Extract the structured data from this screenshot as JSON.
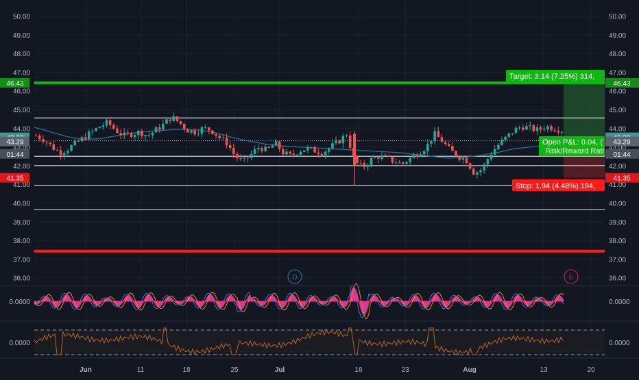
{
  "colors": {
    "background": "#131722",
    "grid": "#1e2230",
    "axis_text": "#b2b5be",
    "candle_up": "#26a69a",
    "candle_down": "#ef5350",
    "ma_line": "#2a6f97",
    "level_white": "#d1d4dc",
    "target_green": "#11b711",
    "stop_red": "#ff1a1a",
    "osc_pink": "#ff2e8a",
    "osc_orange": "#e08a2c",
    "osc_blue": "#2f7fd0",
    "osc2_line": "#b8652a"
  },
  "chart_data": {
    "type": "candlestick",
    "main": {
      "ylim": [
        35.8,
        50.5
      ],
      "y_ticks": [
        "50.00",
        "49.00",
        "48.00",
        "47.00",
        "46.00",
        "45.00",
        "44.00",
        "43.00",
        "42.00",
        "41.00",
        "40.00",
        "39.00",
        "38.00",
        "37.00",
        "36.00"
      ],
      "x_labels": [
        "Jun",
        "11",
        "18",
        "25",
        "Jul",
        "16",
        "23",
        "Aug",
        "13",
        "20"
      ],
      "horizontal_levels": [
        44.55,
        42.5,
        42.0,
        40.95,
        39.65
      ],
      "support_band": [
        37.35,
        37.5
      ],
      "target_level": 46.43,
      "stop_level": 41.35,
      "entry_level": 43.29,
      "dotted_level": 43.33,
      "price_badges": [
        {
          "label": "46.43",
          "kind": "target"
        },
        {
          "label": "43.33",
          "kind": "last"
        },
        {
          "label": "01:44",
          "kind": "countdown"
        },
        {
          "label": "43.29",
          "kind": "entry"
        },
        {
          "label": "41.35",
          "kind": "stop"
        }
      ],
      "position_labels": {
        "target": "Target: 3.14 (7.25%) 314,",
        "pnl_line1": "Open P&L: 0.04, (",
        "pnl_line2": "Risk/Reward Rati",
        "stop": "Stop: 1.94 (4.48%) 194,"
      },
      "event_markers": [
        "D",
        "E"
      ],
      "close_path": [
        43.6,
        43.4,
        43.0,
        42.7,
        42.9,
        43.2,
        43.5,
        43.8,
        44.1,
        44.3,
        43.9,
        43.6,
        43.7,
        43.8,
        43.6,
        43.9,
        44.2,
        44.6,
        44.3,
        43.9,
        43.8,
        44.0,
        43.9,
        43.5,
        43.2,
        42.5,
        42.2,
        42.6,
        43.0,
        42.8,
        43.2,
        42.7,
        42.5,
        42.8,
        42.9,
        42.8,
        42.7,
        43.0,
        43.3,
        43.7,
        42.2,
        41.9,
        42.3,
        42.5,
        42.4,
        42.2,
        42.1,
        42.4,
        42.7,
        43.0,
        43.7,
        43.3,
        42.8,
        42.5,
        42.3,
        41.6,
        41.8,
        42.6,
        43.1,
        43.5,
        43.9,
        44.1,
        44.0,
        43.9,
        44.1,
        44.0,
        43.9
      ],
      "ma_path": [
        44.05,
        43.8,
        43.55,
        43.4,
        43.45,
        43.6,
        43.75,
        43.85,
        43.9,
        43.95,
        43.9,
        43.75,
        43.5,
        43.3,
        43.15,
        43.05,
        43.0,
        42.95,
        42.9,
        42.85,
        42.8,
        42.75,
        42.7,
        42.6,
        42.5,
        42.4,
        42.45,
        42.55,
        42.7,
        42.9,
        43.0,
        43.1,
        43.3
      ]
    },
    "oscillator_1": {
      "ylim": [
        -1,
        1
      ],
      "tick_label": "0.0000"
    },
    "oscillator_2": {
      "ylim": [
        -1,
        1
      ],
      "tick_label": "0.0000"
    }
  }
}
